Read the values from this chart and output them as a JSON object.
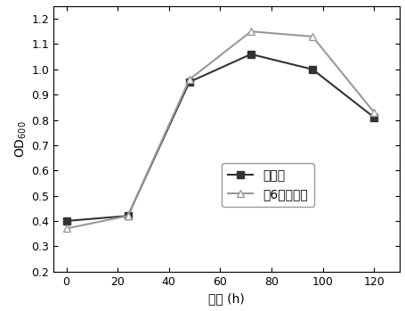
{
  "series1": {
    "label": "不鼓泡",
    "x": [
      0,
      24,
      48,
      72,
      96,
      120
    ],
    "y": [
      0.4,
      0.42,
      0.95,
      1.06,
      1.0,
      0.81
    ],
    "color": "#333333",
    "marker": "s",
    "markerfacecolor": "#333333"
  },
  "series2": {
    "label": "间6小时鼓泡",
    "x": [
      0,
      24,
      48,
      72,
      96,
      120
    ],
    "y": [
      0.37,
      0.42,
      0.96,
      1.15,
      1.13,
      0.83
    ],
    "color": "#999999",
    "marker": "^",
    "markerfacecolor": "white"
  },
  "xlabel": "时间 (h)",
  "ylabel": "OD$_{600}$",
  "xlim": [
    -5,
    130
  ],
  "ylim": [
    0.2,
    1.25
  ],
  "xticks": [
    0,
    20,
    40,
    60,
    80,
    100,
    120
  ],
  "yticks": [
    0.2,
    0.3,
    0.4,
    0.5,
    0.6,
    0.7,
    0.8,
    0.9,
    1.0,
    1.1,
    1.2
  ],
  "background_color": "#ffffff",
  "linewidth": 1.5,
  "markersize": 6
}
